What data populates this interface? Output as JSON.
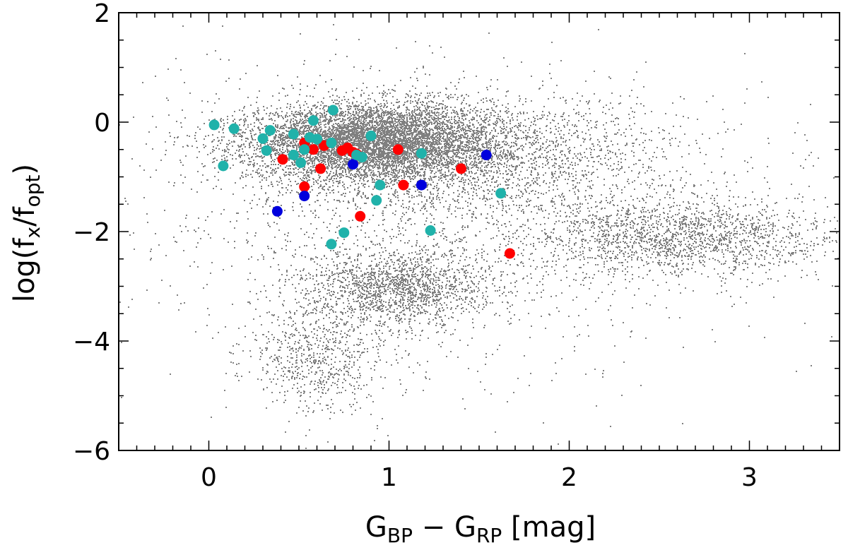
{
  "chart_data": {
    "type": "scatter",
    "title": "",
    "xlabel": {
      "base": "G",
      "sub1": "BP",
      "mid": " − G",
      "sub2": "RP",
      "unit": " [mag]"
    },
    "ylabel": {
      "pre": "log(f",
      "sub1": "x",
      "mid": "/f",
      "sub2": "opt",
      "post": ")"
    },
    "xlim": [
      -0.5,
      3.5
    ],
    "ylim": [
      -6,
      2
    ],
    "xticks": [
      0,
      1,
      2,
      3
    ],
    "xtick_labels": [
      "0",
      "1",
      "2",
      "3"
    ],
    "yticks": [
      -6,
      -4,
      -2,
      0,
      2
    ],
    "ytick_labels": [
      "−6",
      "−4",
      "−2",
      "0",
      "2"
    ],
    "xminor_step": 0.1,
    "yminor_step": 0.5,
    "grid": false,
    "colors": {
      "background": "#808080",
      "red": "#ff0000",
      "blue": "#0000dd",
      "cyan": "#20b2aa"
    },
    "background_clouds": [
      {
        "name": "upper-dense-cloud",
        "cx": 0.9,
        "cy": -0.35,
        "sx": 0.35,
        "sy": 0.35,
        "n": 6000
      },
      {
        "name": "upper-broad-cloud",
        "cx": 1.4,
        "cy": -0.6,
        "sx": 0.6,
        "sy": 0.55,
        "n": 2500
      },
      {
        "name": "lower-band-cloud",
        "cx": 1.05,
        "cy": -3.0,
        "sx": 0.25,
        "sy": 0.35,
        "n": 1600
      },
      {
        "name": "lower-tail-cloud",
        "cx": 0.6,
        "cy": -4.3,
        "sx": 0.2,
        "sy": 0.5,
        "n": 700
      },
      {
        "name": "red-branch-cloud",
        "cx": 2.6,
        "cy": -2.1,
        "sx": 0.45,
        "sy": 0.35,
        "n": 1800
      },
      {
        "name": "sparse-halo",
        "cx": 1.3,
        "cy": -1.8,
        "sx": 0.9,
        "sy": 1.4,
        "n": 1600
      }
    ],
    "series": [
      {
        "name": "red",
        "color": "#ff0000",
        "points": [
          [
            0.41,
            -0.68
          ],
          [
            0.53,
            -0.38
          ],
          [
            0.58,
            -0.5
          ],
          [
            0.62,
            -0.85
          ],
          [
            0.64,
            -0.43
          ],
          [
            0.74,
            -0.52
          ],
          [
            0.77,
            -0.47
          ],
          [
            0.8,
            -0.55
          ],
          [
            0.82,
            -0.58
          ],
          [
            1.05,
            -0.5
          ],
          [
            1.08,
            -1.15
          ],
          [
            1.4,
            -0.85
          ],
          [
            0.53,
            -1.18
          ],
          [
            0.84,
            -1.72
          ],
          [
            1.67,
            -2.4
          ]
        ]
      },
      {
        "name": "blue",
        "color": "#0000dd",
        "points": [
          [
            0.38,
            -1.63
          ],
          [
            0.53,
            -1.35
          ],
          [
            0.8,
            -0.77
          ],
          [
            1.18,
            -1.15
          ],
          [
            1.54,
            -0.6
          ]
        ]
      },
      {
        "name": "cyan",
        "color": "#20b2aa",
        "points": [
          [
            0.03,
            -0.05
          ],
          [
            0.14,
            -0.12
          ],
          [
            0.08,
            -0.8
          ],
          [
            0.3,
            -0.3
          ],
          [
            0.34,
            -0.15
          ],
          [
            0.32,
            -0.52
          ],
          [
            0.47,
            -0.22
          ],
          [
            0.47,
            -0.6
          ],
          [
            0.53,
            -0.5
          ],
          [
            0.51,
            -0.74
          ],
          [
            0.56,
            -0.28
          ],
          [
            0.58,
            0.03
          ],
          [
            0.6,
            -0.31
          ],
          [
            0.68,
            -0.38
          ],
          [
            0.69,
            0.22
          ],
          [
            0.82,
            -0.6
          ],
          [
            0.85,
            -0.64
          ],
          [
            0.9,
            -0.25
          ],
          [
            0.95,
            -1.15
          ],
          [
            0.93,
            -1.43
          ],
          [
            1.18,
            -0.57
          ],
          [
            1.62,
            -1.3
          ],
          [
            1.23,
            -1.98
          ],
          [
            0.75,
            -2.02
          ],
          [
            0.68,
            -2.23
          ]
        ]
      }
    ]
  }
}
